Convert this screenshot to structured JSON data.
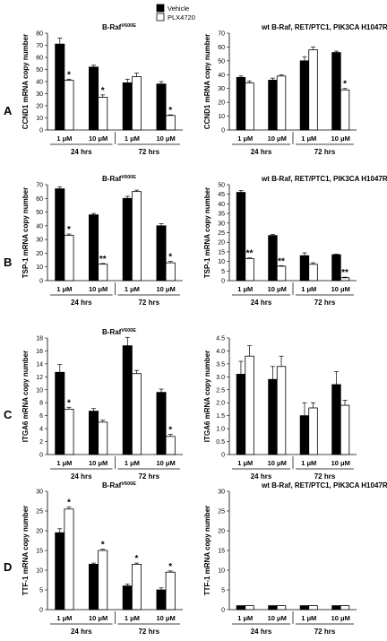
{
  "legend": {
    "items": [
      {
        "label": "Vehicle",
        "color": "#000000"
      },
      {
        "label": "PLX4720",
        "color": "#ffffff"
      }
    ]
  },
  "chart_data": [
    {
      "type": "bar",
      "panel": "A",
      "title_main": "B-Raf",
      "title_sup": "V600E",
      "ylabel": "CCND1 mRNA copy number",
      "ylim": [
        0,
        80
      ],
      "yticks": [
        0,
        10,
        20,
        30,
        40,
        50,
        60,
        70,
        80
      ],
      "categories": [
        "1 μM",
        "10 μM",
        "1 μM",
        "10 μM"
      ],
      "groups": [
        "24 hrs",
        "72 hrs"
      ],
      "series": [
        {
          "name": "Vehicle",
          "values": [
            71,
            52,
            39,
            38
          ],
          "errors": [
            5,
            1.5,
            3,
            2
          ]
        },
        {
          "name": "PLX4720",
          "values": [
            41,
            27,
            44,
            12
          ],
          "errors": [
            1,
            2,
            3,
            0.5
          ]
        }
      ],
      "significance": [
        "*",
        "*",
        "",
        "*"
      ]
    },
    {
      "type": "bar",
      "panel": "A",
      "title_main": "wt B-Raf, RET/PTC1, PIK3CA H1047R",
      "title_sup": "",
      "ylabel": "CCND1 mRNA copy number",
      "ylim": [
        0,
        70
      ],
      "yticks": [
        0,
        10,
        20,
        30,
        40,
        50,
        60,
        70
      ],
      "categories": [
        "1 μM",
        "10 μM",
        "1 μM",
        "10 μM"
      ],
      "groups": [
        "24 hrs",
        "72 hrs"
      ],
      "series": [
        {
          "name": "Vehicle",
          "values": [
            38,
            36,
            50,
            56
          ],
          "errors": [
            1,
            1.5,
            3,
            1
          ]
        },
        {
          "name": "PLX4720",
          "values": [
            34,
            39,
            58,
            29
          ],
          "errors": [
            1.5,
            1,
            2,
            1
          ]
        }
      ],
      "significance": [
        "",
        "",
        "",
        "*"
      ]
    },
    {
      "type": "bar",
      "panel": "B",
      "title_main": "B-Raf",
      "title_sup": "V600E",
      "ylabel": "TSP-1 mRNA copy number",
      "ylim": [
        0,
        70
      ],
      "yticks": [
        0,
        10,
        20,
        30,
        40,
        50,
        60,
        70
      ],
      "categories": [
        "1 μM",
        "10 μM",
        "1 μM",
        "10 μM"
      ],
      "groups": [
        "24 hrs",
        "72 hrs"
      ],
      "series": [
        {
          "name": "Vehicle",
          "values": [
            67,
            48,
            60,
            40
          ],
          "errors": [
            1.5,
            1,
            1.5,
            1.5
          ]
        },
        {
          "name": "PLX4720",
          "values": [
            33,
            12,
            65,
            13
          ],
          "errors": [
            1,
            0.5,
            1,
            1
          ]
        }
      ],
      "significance": [
        "*",
        "**",
        "",
        "*"
      ]
    },
    {
      "type": "bar",
      "panel": "B",
      "title_main": "wt B-Raf, RET/PTC1, PIK3CA H1047R",
      "title_sup": "",
      "ylabel": "TSP-1 mRNA copy number",
      "ylim": [
        0,
        50
      ],
      "yticks": [
        0,
        5,
        10,
        15,
        20,
        25,
        30,
        35,
        40,
        45,
        50
      ],
      "categories": [
        "1 μM",
        "10 μM",
        "1 μM",
        "10 μM"
      ],
      "groups": [
        "24 hrs",
        "72 hrs"
      ],
      "series": [
        {
          "name": "Vehicle",
          "values": [
            46,
            23.5,
            13,
            13.5
          ],
          "errors": [
            1,
            0.5,
            1.5,
            0.3
          ]
        },
        {
          "name": "PLX4720",
          "values": [
            11.5,
            7.5,
            8.5,
            1.5
          ],
          "errors": [
            0.3,
            0.3,
            0.8,
            0.3
          ]
        }
      ],
      "significance": [
        "**",
        "**",
        "",
        "**"
      ]
    },
    {
      "type": "bar",
      "panel": "C",
      "title_main": "B-Raf",
      "title_sup": "V600E",
      "ylabel": "ITGA6 mRNA copy number",
      "ylim": [
        0,
        18
      ],
      "yticks": [
        0,
        2,
        4,
        6,
        8,
        10,
        12,
        14,
        16,
        18
      ],
      "categories": [
        "1 μM",
        "10 μM",
        "1 μM",
        "10 μM"
      ],
      "groups": [
        "24 hrs",
        "72 hrs"
      ],
      "series": [
        {
          "name": "Vehicle",
          "values": [
            12.7,
            6.7,
            16.8,
            9.6
          ],
          "errors": [
            1.2,
            0.4,
            1.3,
            0.5
          ]
        },
        {
          "name": "PLX4720",
          "values": [
            7,
            5,
            12.5,
            2.8
          ],
          "errors": [
            0.3,
            0.3,
            0.5,
            0.3
          ]
        }
      ],
      "significance": [
        "*",
        "",
        "",
        "*"
      ]
    },
    {
      "type": "bar",
      "panel": "C",
      "title_main": "",
      "title_sup": "",
      "ylabel": "ITGA6 mRNA copy number",
      "ylim": [
        0,
        4.5
      ],
      "yticks": [
        0,
        0.5,
        1.0,
        1.5,
        2.0,
        2.5,
        3.0,
        3.5,
        4.0,
        4.5
      ],
      "categories": [
        "1 μM",
        "10 μM",
        "1 μM",
        "10 μM"
      ],
      "groups": [
        "24 hrs",
        "72 hrs"
      ],
      "series": [
        {
          "name": "Vehicle",
          "values": [
            3.1,
            2.9,
            1.5,
            2.7
          ],
          "errors": [
            0.5,
            0.5,
            0.5,
            0.5
          ]
        },
        {
          "name": "PLX4720",
          "values": [
            3.8,
            3.4,
            1.8,
            1.9
          ],
          "errors": [
            0.4,
            0.4,
            0.2,
            0.2
          ]
        }
      ],
      "significance": [
        "",
        "",
        "",
        ""
      ]
    },
    {
      "type": "bar",
      "panel": "D",
      "title_main": "B-Raf",
      "title_sup": "V600E",
      "ylabel": "TTF-1 mRNA copy number",
      "ylim": [
        0,
        30
      ],
      "yticks": [
        0,
        5,
        10,
        15,
        20,
        25,
        30
      ],
      "categories": [
        "1 μM",
        "10 μM",
        "1 μM",
        "10 μM"
      ],
      "groups": [
        "24 hrs",
        "72 hrs"
      ],
      "series": [
        {
          "name": "Vehicle",
          "values": [
            19.5,
            11.5,
            6,
            5
          ],
          "errors": [
            1,
            0.3,
            0.5,
            0.5
          ]
        },
        {
          "name": "PLX4720",
          "values": [
            25.5,
            15,
            11.5,
            9.5
          ],
          "errors": [
            0.5,
            0.3,
            0.3,
            0.3
          ]
        }
      ],
      "significance": [
        "*",
        "*",
        "*",
        "*"
      ]
    },
    {
      "type": "bar",
      "panel": "D",
      "title_main": "wt B-Raf, RET/PTC1, PIK3CA H1047R",
      "title_sup": "",
      "ylabel": "TTF-1 mRNA copy number",
      "ylim": [
        0,
        30
      ],
      "yticks": [
        0,
        5,
        10,
        15,
        20,
        25,
        30
      ],
      "categories": [
        "1 μM",
        "10 μM",
        "1 μM",
        "10 μM"
      ],
      "groups": [
        "24 hrs",
        "72 hrs"
      ],
      "series": [
        {
          "name": "Vehicle",
          "values": [
            1,
            1,
            1,
            1
          ],
          "errors": [
            0,
            0,
            0,
            0
          ]
        },
        {
          "name": "PLX4720",
          "values": [
            1,
            1,
            1,
            1
          ],
          "errors": [
            0,
            0,
            0,
            0
          ]
        }
      ],
      "significance": [
        "",
        "",
        "",
        ""
      ]
    }
  ]
}
